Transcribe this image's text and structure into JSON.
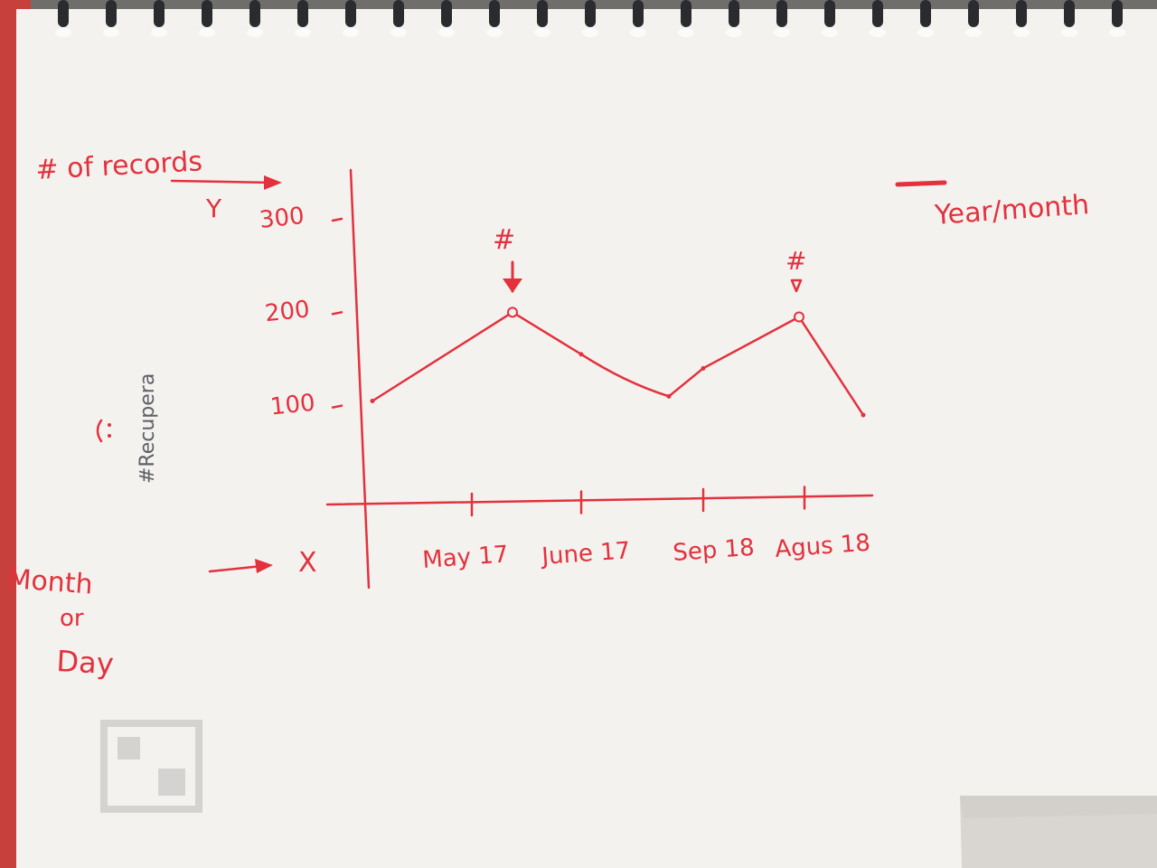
{
  "colors": {
    "ink": "#e3313d",
    "paper": "#f4f2ef",
    "desk": "#6f6e6a",
    "spiral": "#2a2b2e",
    "faint_text": "#5f6168"
  },
  "icons": [
    "spiral-binding-icon",
    "smiley-icon",
    "arrow-right-icon",
    "arrow-down-icon"
  ],
  "notes": {
    "hash_marker_1": "#",
    "hash_marker_2": "#",
    "side_label_1": "Month",
    "side_label_2": "or",
    "side_label_3": "Day",
    "x_marker": "X",
    "y_marker": "Y",
    "legend": "Year/month",
    "stamp": "#Recupera"
  },
  "chart_data": {
    "type": "line",
    "xlabel": "Month or Day",
    "ylabel": "# of records",
    "y_ticks": [
      "100",
      "200",
      "300"
    ],
    "ylim": [
      0,
      300
    ],
    "x_ticks": [
      "May 17",
      "June 17",
      "Sep 18",
      "Agus 18"
    ],
    "legend": "Year/month",
    "legend_position": "top-right",
    "grid": false,
    "series": [
      {
        "x": [
          "start",
          "May 17",
          "June 17",
          "mid",
          "Sep 18",
          "Agus 18",
          "end"
        ],
        "values": [
          105,
          200,
          155,
          110,
          140,
          195,
          90
        ],
        "highlight": [
          1,
          5
        ]
      }
    ]
  }
}
